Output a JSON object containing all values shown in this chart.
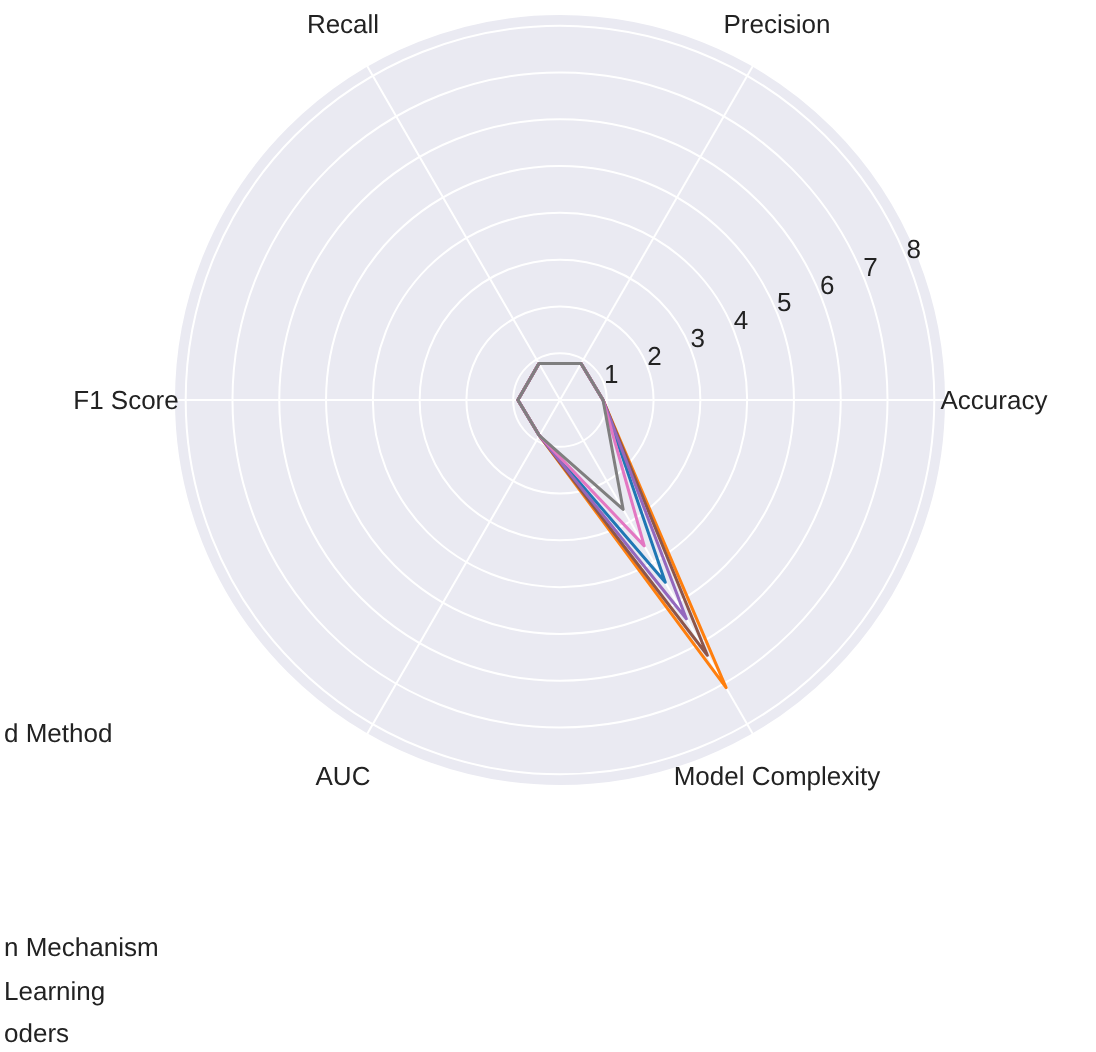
{
  "chart_data": {
    "type": "radar",
    "categories": [
      "Precision",
      "Accuracy",
      "Model Complexity",
      "AUC",
      "F1 Score",
      "Recall"
    ],
    "series": [
      {
        "color": "#1f77b4",
        "values": [
          0.9,
          0.92,
          4.5,
          0.88,
          0.9,
          0.9
        ]
      },
      {
        "color": "#ff7f0e",
        "values": [
          0.9,
          0.92,
          7.1,
          0.88,
          0.9,
          0.9
        ]
      },
      {
        "color": "#8c564b",
        "values": [
          0.9,
          0.92,
          6.3,
          0.88,
          0.9,
          0.9
        ]
      },
      {
        "color": "#9467bd",
        "values": [
          0.9,
          0.92,
          5.4,
          0.88,
          0.9,
          0.9
        ]
      },
      {
        "color": "#e377c2",
        "values": [
          0.9,
          0.92,
          3.6,
          0.88,
          0.9,
          0.9
        ]
      },
      {
        "color": "#7f7f7f",
        "values": [
          0.9,
          0.92,
          2.7,
          0.88,
          0.9,
          0.9
        ]
      }
    ],
    "ylim": [
      0,
      8.25
    ],
    "yticks": [
      1,
      2,
      3,
      4,
      5,
      6,
      7,
      8
    ],
    "grid": true,
    "annotations": [
      "d Method",
      "n Mechanism",
      "Learning",
      "oders"
    ]
  }
}
